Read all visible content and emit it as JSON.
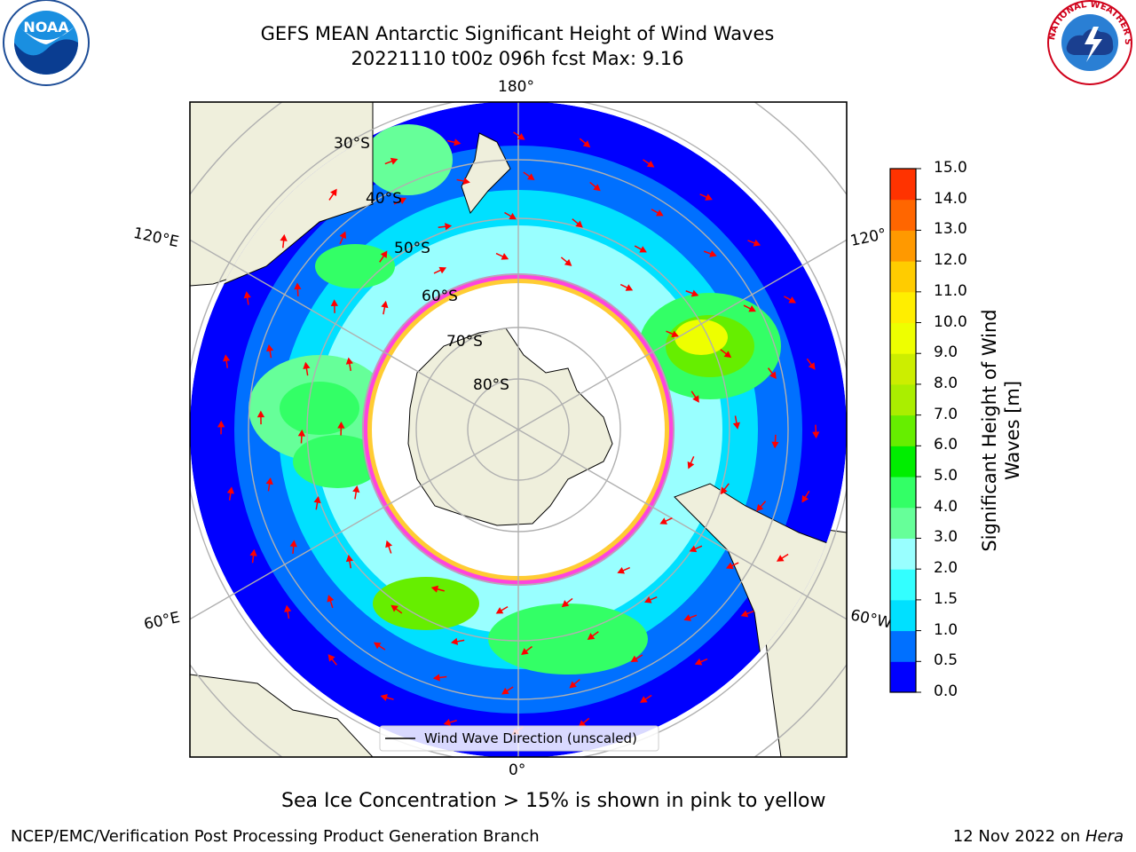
{
  "header": {
    "title_line1": "GEFS MEAN Antarctic Significant Height of Wind Waves",
    "title_line2": "20221110 t00z 096h fcst   Max: 9.16"
  },
  "logos": {
    "left": {
      "icon": "noaa-logo",
      "text": "NOAA"
    },
    "right": {
      "icon": "national-weather-service-logo",
      "text": "NATIONAL WEATHER SERVICE"
    }
  },
  "map": {
    "projection": "south-polar-stereographic",
    "longitude_labels": {
      "top": "180°",
      "bottom": "0°",
      "left_upper": "120°E",
      "left_lower": "60°E",
      "right_upper": "120°",
      "right_lower": "60°W"
    },
    "latitude_labels": [
      "30°S",
      "40°S",
      "50°S",
      "60°S",
      "70°S",
      "80°S"
    ],
    "legend": "Wind Wave Direction (unscaled)",
    "colors": {
      "land": "#efefdc",
      "ocean_low": "#0000ff",
      "ice_pink": "#ff44dd",
      "ice_yellow": "#ffcc33",
      "arrow": "#ff0000"
    }
  },
  "colorbar": {
    "title_line1": "Significant Height of Wind",
    "title_line2": "Waves [m]",
    "ticks": [
      "0.0",
      "0.5",
      "1.0",
      "1.5",
      "2.0",
      "3.0",
      "4.0",
      "5.0",
      "6.0",
      "7.0",
      "8.0",
      "9.0",
      "10.0",
      "11.0",
      "12.0",
      "13.0",
      "14.0",
      "15.0"
    ],
    "colors": [
      "#0000ff",
      "#0070ff",
      "#00e0ff",
      "#33ffff",
      "#99ffff",
      "#66ff99",
      "#33ff66",
      "#00ee00",
      "#66ee00",
      "#aaee00",
      "#ccee00",
      "#eeff00",
      "#ffee00",
      "#ffcc00",
      "#ff9900",
      "#ff6600",
      "#ff3300",
      "#ff0000"
    ]
  },
  "footer": {
    "note": "Sea Ice Concentration > 15% is shown in pink to yellow",
    "org": "NCEP/EMC/Verification Post Processing Product Generation Branch",
    "date": "12 Nov 2022 on",
    "machine": "Hera"
  }
}
